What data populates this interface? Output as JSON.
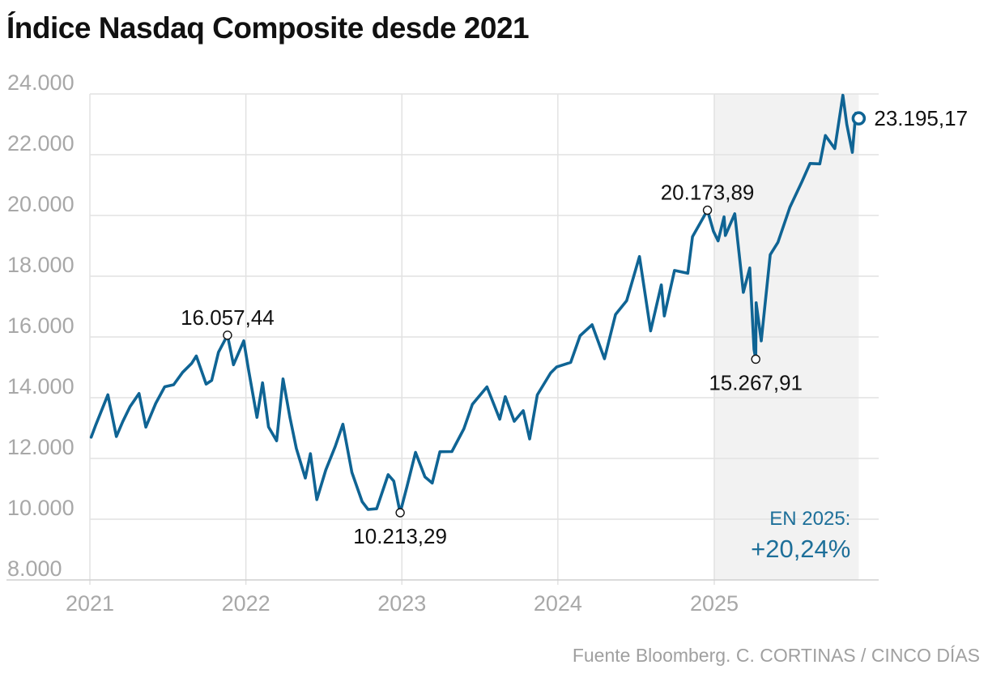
{
  "chart_data": {
    "type": "line",
    "title": "Índice Nasdaq Composite desde 2021",
    "source": "Fuente Bloomberg. C. CORTINAS / CINCO DÍAS",
    "ylim": [
      8000,
      24000
    ],
    "yticks": [
      8000,
      10000,
      12000,
      14000,
      16000,
      18000,
      20000,
      22000,
      24000
    ],
    "ytick_labels": [
      "8.000",
      "10.000",
      "12.000",
      "14.000",
      "16.000",
      "18.000",
      "20.000",
      "22.000",
      "24.000"
    ],
    "xlim": [
      "2021-01-01",
      "2025-12-05"
    ],
    "xticks": [
      "2021-01-01",
      "2022-01-01",
      "2023-01-01",
      "2024-01-01",
      "2025-01-01"
    ],
    "xtick_labels": [
      "2021",
      "2022",
      "2023",
      "2024",
      "2025"
    ],
    "grid": true,
    "highlight_period": {
      "start": "2025-01-01",
      "end": "2025-12-05",
      "color": "#f2f2f2"
    },
    "line_color": "#0f6494",
    "series": [
      {
        "points": [
          [
            "2021-01-04",
            12698
          ],
          [
            "2021-01-15",
            13112
          ],
          [
            "2021-02-12",
            14095
          ],
          [
            "2021-03-04",
            12723
          ],
          [
            "2021-03-19",
            13216
          ],
          [
            "2021-04-05",
            13706
          ],
          [
            "2021-04-26",
            14138
          ],
          [
            "2021-05-12",
            13032
          ],
          [
            "2021-06-04",
            13814
          ],
          [
            "2021-06-25",
            14360
          ],
          [
            "2021-07-16",
            14427
          ],
          [
            "2021-08-06",
            14835
          ],
          [
            "2021-08-27",
            15129
          ],
          [
            "2021-09-07",
            15374
          ],
          [
            "2021-09-30",
            14448
          ],
          [
            "2021-10-13",
            14571
          ],
          [
            "2021-10-29",
            15498
          ],
          [
            "2021-11-19",
            16057.44
          ],
          [
            "2021-12-03",
            15085
          ],
          [
            "2021-12-27",
            15871
          ],
          [
            "2022-01-07",
            14936
          ],
          [
            "2022-01-27",
            13353
          ],
          [
            "2022-02-09",
            14490
          ],
          [
            "2022-02-23",
            13037
          ],
          [
            "2022-03-14",
            12581
          ],
          [
            "2022-03-29",
            14619
          ],
          [
            "2022-04-14",
            13351
          ],
          [
            "2022-04-29",
            12334
          ],
          [
            "2022-05-20",
            11354
          ],
          [
            "2022-06-01",
            12156
          ],
          [
            "2022-06-16",
            10646
          ],
          [
            "2022-07-07",
            11621
          ],
          [
            "2022-07-29",
            12391
          ],
          [
            "2022-08-16",
            13128
          ],
          [
            "2022-09-06",
            11544
          ],
          [
            "2022-09-30",
            10576
          ],
          [
            "2022-10-14",
            10321
          ],
          [
            "2022-11-03",
            10343
          ],
          [
            "2022-11-30",
            11468
          ],
          [
            "2022-12-13",
            11256
          ],
          [
            "2022-12-28",
            10213.29
          ],
          [
            "2023-01-13",
            11079
          ],
          [
            "2023-02-02",
            12201
          ],
          [
            "2023-02-24",
            11395
          ],
          [
            "2023-03-13",
            11189
          ],
          [
            "2023-03-31",
            12221
          ],
          [
            "2023-04-28",
            12226
          ],
          [
            "2023-05-26",
            12976
          ],
          [
            "2023-06-15",
            13782
          ],
          [
            "2023-07-19",
            14358
          ],
          [
            "2023-08-18",
            13290
          ],
          [
            "2023-08-31",
            14035
          ],
          [
            "2023-09-21",
            13224
          ],
          [
            "2023-10-12",
            13574
          ],
          [
            "2023-10-27",
            12643
          ],
          [
            "2023-11-14",
            14094
          ],
          [
            "2023-12-15",
            14814
          ],
          [
            "2023-12-29",
            15011
          ],
          [
            "2024-01-31",
            15164
          ],
          [
            "2024-02-22",
            16041
          ],
          [
            "2024-03-21",
            16402
          ],
          [
            "2024-04-19",
            15282
          ],
          [
            "2024-05-15",
            16742
          ],
          [
            "2024-06-10",
            17193
          ],
          [
            "2024-07-10",
            18647
          ],
          [
            "2024-07-24",
            17342
          ],
          [
            "2024-08-05",
            16200
          ],
          [
            "2024-08-30",
            17714
          ],
          [
            "2024-09-06",
            16691
          ],
          [
            "2024-09-30",
            18189
          ],
          [
            "2024-10-31",
            18095
          ],
          [
            "2024-11-11",
            19298
          ],
          [
            "2024-12-16",
            20173.89
          ],
          [
            "2024-12-30",
            19486
          ],
          [
            "2025-01-10",
            19162
          ],
          [
            "2025-01-24",
            19954
          ],
          [
            "2025-01-27",
            19341
          ],
          [
            "2025-02-18",
            20056
          ],
          [
            "2025-03-10",
            17468
          ],
          [
            "2025-03-25",
            18271
          ],
          [
            "2025-04-04",
            15587
          ],
          [
            "2025-04-08",
            15267.91
          ],
          [
            "2025-04-09",
            17124
          ],
          [
            "2025-04-21",
            15870
          ],
          [
            "2025-05-12",
            18708
          ],
          [
            "2025-05-30",
            19114
          ],
          [
            "2025-06-27",
            20273
          ],
          [
            "2025-07-25",
            21108
          ],
          [
            "2025-08-13",
            21713
          ],
          [
            "2025-09-05",
            21700
          ],
          [
            "2025-09-18",
            22631
          ],
          [
            "2025-10-10",
            22204
          ],
          [
            "2025-10-29",
            23958
          ],
          [
            "2025-11-07",
            23004
          ],
          [
            "2025-11-20",
            22078
          ],
          [
            "2025-11-28",
            23365
          ],
          [
            "2025-12-05",
            23195.17
          ]
        ]
      }
    ],
    "annotations": [
      {
        "date": "2021-11-19",
        "value": 16057.44,
        "label": "16.057,44",
        "position": "above"
      },
      {
        "date": "2022-12-28",
        "value": 10213.29,
        "label": "10.213,29",
        "position": "below"
      },
      {
        "date": "2024-12-16",
        "value": 20173.89,
        "label": "20.173,89",
        "position": "above"
      },
      {
        "date": "2025-04-08",
        "value": 15267.91,
        "label": "15.267,91",
        "position": "below"
      },
      {
        "date": "2025-12-05",
        "value": 23195.17,
        "label": "23.195,17",
        "position": "right",
        "end_marker": true
      }
    ],
    "highlight_text": {
      "label": "EN 2025:",
      "value": "+20,24%"
    }
  }
}
